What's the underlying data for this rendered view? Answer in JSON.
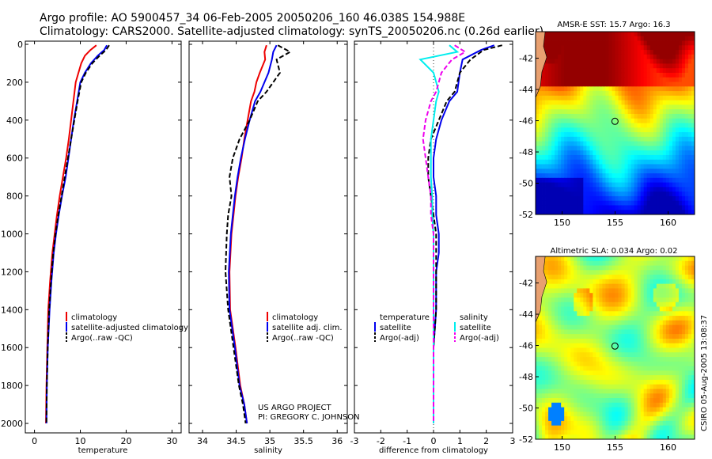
{
  "header": {
    "line1": "Argo profile: AO 5900457_34 06-Feb-2005 20050206_160 46.038S 154.988E",
    "line2": "Climatology: CARS2000. Satellite-adjusted climatology: synTS_20050206.nc (0.26d earlier)"
  },
  "credit": {
    "line1": "US ARGO PROJECT",
    "line2": "PI: GREGORY C. JOHNSON"
  },
  "watermark": "CSIRO 05-Aug-2005 13:08:37",
  "colors": {
    "climatology": "#ee0000",
    "satellite": "#0000ee",
    "argo": "#000000",
    "sal_satellite": "#00eeee",
    "sal_argo": "#ee00ee"
  },
  "chart_data": [
    {
      "type": "line",
      "id": "temperature",
      "xlabel": "temperature",
      "ylim": [
        2050,
        0
      ],
      "xlim": [
        -2,
        32
      ],
      "xticks": [
        "0",
        "10",
        "20",
        "30"
      ],
      "xtick_values": [
        0,
        10,
        20,
        30
      ],
      "yticks": [
        "0",
        "200",
        "400",
        "600",
        "800",
        "1000",
        "1200",
        "1400",
        "1600",
        "1800",
        "2000"
      ],
      "ytick_values": [
        0,
        200,
        400,
        600,
        800,
        1000,
        1200,
        1400,
        1600,
        1800,
        2000
      ],
      "legend": [
        "climatology",
        "satellite-adjusted climatology",
        "Argo(..raw -QC)"
      ],
      "series": [
        {
          "name": "climatology",
          "style": "solid",
          "color": "#ee0000",
          "x": [
            13.5,
            12.2,
            11.0,
            10.2,
            9.6,
            9.0,
            8.5,
            8.0,
            7.5,
            6.9,
            6.2,
            5.5,
            4.9,
            4.4,
            3.9,
            3.4,
            3.0,
            2.8,
            2.6,
            2.5
          ],
          "y": [
            5,
            30,
            60,
            100,
            150,
            200,
            300,
            400,
            500,
            600,
            700,
            800,
            900,
            1000,
            1100,
            1250,
            1400,
            1600,
            1800,
            2000
          ]
        },
        {
          "name": "satellite",
          "style": "solid",
          "color": "#0000ee",
          "x": [
            15.8,
            15.2,
            13.8,
            12.3,
            11.0,
            10.0,
            9.3,
            8.6,
            8.0,
            7.4,
            6.8,
            6.0,
            5.3,
            4.7,
            4.2,
            3.7,
            3.3,
            2.9,
            2.7,
            2.6
          ],
          "y": [
            5,
            30,
            60,
            100,
            150,
            200,
            300,
            400,
            500,
            600,
            700,
            800,
            900,
            1000,
            1100,
            1250,
            1400,
            1600,
            1800,
            2000
          ]
        },
        {
          "name": "argo",
          "style": "dash",
          "color": "#000000",
          "x": [
            16.3,
            15.6,
            14.2,
            12.6,
            11.2,
            10.2,
            9.4,
            8.7,
            8.0,
            7.3,
            6.6,
            5.9,
            5.2,
            4.6,
            4.1,
            3.6,
            3.2,
            2.9,
            2.7,
            2.6
          ],
          "y": [
            5,
            30,
            60,
            100,
            150,
            200,
            300,
            400,
            500,
            600,
            700,
            800,
            900,
            1000,
            1100,
            1250,
            1400,
            1600,
            1800,
            2000
          ]
        }
      ]
    },
    {
      "type": "line",
      "id": "salinity",
      "xlabel": "salinity",
      "ylim": [
        2050,
        0
      ],
      "xlim": [
        33.8,
        36.15
      ],
      "xticks": [
        "34",
        "34.5",
        "35",
        "35.5",
        "36"
      ],
      "xtick_values": [
        34,
        34.5,
        35,
        35.5,
        36
      ],
      "legend": [
        "climatology",
        "satellite adj. clim.",
        "Argo(..raw -QC)"
      ],
      "series": [
        {
          "name": "climatology",
          "style": "solid",
          "color": "#ee0000",
          "x": [
            34.95,
            34.92,
            34.93,
            34.85,
            34.8,
            34.77,
            34.72,
            34.67,
            34.62,
            34.58,
            34.53,
            34.49,
            34.46,
            34.43,
            34.4,
            34.41,
            34.49,
            34.56,
            34.62,
            34.66
          ],
          "y": [
            5,
            40,
            80,
            150,
            200,
            250,
            300,
            400,
            500,
            600,
            700,
            800,
            900,
            1000,
            1200,
            1400,
            1600,
            1800,
            1900,
            2000
          ]
        },
        {
          "name": "satellite",
          "style": "solid",
          "color": "#0000ee",
          "x": [
            35.1,
            35.05,
            35.03,
            34.98,
            34.92,
            34.86,
            34.78,
            34.7,
            34.63,
            34.57,
            34.52,
            34.48,
            34.45,
            34.42,
            34.39,
            34.4,
            34.48,
            34.55,
            34.62,
            34.66
          ],
          "y": [
            5,
            40,
            80,
            150,
            200,
            250,
            300,
            400,
            500,
            600,
            700,
            800,
            900,
            1000,
            1200,
            1400,
            1600,
            1800,
            1900,
            2000
          ]
        },
        {
          "name": "argo",
          "style": "dash",
          "color": "#000000",
          "x": [
            35.12,
            35.3,
            35.1,
            35.15,
            35.05,
            34.95,
            34.82,
            34.7,
            34.55,
            34.45,
            34.4,
            34.43,
            34.38,
            34.36,
            34.34,
            34.38,
            34.46,
            34.54,
            34.6,
            34.64
          ],
          "y": [
            5,
            40,
            80,
            150,
            200,
            250,
            300,
            400,
            500,
            600,
            700,
            800,
            900,
            1000,
            1200,
            1400,
            1600,
            1800,
            1900,
            2000
          ]
        }
      ]
    },
    {
      "type": "line",
      "id": "difference",
      "xlabel": "difference from climatology",
      "ylim": [
        2050,
        0
      ],
      "xlim": [
        -3,
        3
      ],
      "xticks": [
        "-3",
        "-2",
        "-1",
        "0",
        "1",
        "2",
        "3"
      ],
      "xtick_values": [
        -3,
        -2,
        -1,
        0,
        1,
        2,
        3
      ],
      "legend_left_title": "temperature",
      "legend_left": [
        "satellite",
        "Argo(-adj)"
      ],
      "legend_right_title": "salinity",
      "legend_right": [
        "satellite",
        "Argo(-adj)"
      ],
      "series": [
        {
          "name": "temp satellite",
          "style": "solid",
          "color": "#0000ee",
          "x": [
            2.3,
            1.8,
            1.1,
            1.0,
            0.9,
            0.6,
            0.3,
            0.1,
            0.0,
            0.0,
            0.1,
            0.1,
            0.2,
            0.2,
            0.1,
            0.1,
            0.0,
            0.0,
            0.0
          ],
          "y": [
            5,
            30,
            80,
            150,
            250,
            300,
            400,
            500,
            600,
            700,
            800,
            900,
            1000,
            1100,
            1200,
            1400,
            1600,
            1800,
            2000
          ]
        },
        {
          "name": "temp argo",
          "style": "dash",
          "color": "#000000",
          "x": [
            2.6,
            1.9,
            1.4,
            1.0,
            0.8,
            0.5,
            0.2,
            -0.1,
            -0.2,
            -0.2,
            -0.1,
            0.0,
            0.1,
            0.1,
            0.1,
            0.1,
            0.0,
            0.0,
            0.0
          ],
          "y": [
            5,
            30,
            80,
            150,
            250,
            300,
            400,
            500,
            600,
            700,
            800,
            900,
            1000,
            1100,
            1200,
            1400,
            1600,
            1800,
            2000
          ]
        },
        {
          "name": "sal satellite",
          "style": "solid",
          "color": "#00eeee",
          "x": [
            0.6,
            0.9,
            -0.5,
            0.0,
            0.2,
            0.1,
            0.0,
            -0.1,
            -0.1,
            -0.1,
            -0.05,
            -0.05,
            0.0,
            0.0,
            0.0,
            0.0,
            0.0,
            0.0,
            0.0
          ],
          "y": [
            5,
            40,
            80,
            150,
            250,
            300,
            400,
            500,
            600,
            700,
            800,
            900,
            1000,
            1100,
            1200,
            1400,
            1600,
            1800,
            2000
          ]
        },
        {
          "name": "sal argo",
          "style": "dash",
          "color": "#ee00ee",
          "x": [
            0.8,
            1.2,
            0.7,
            0.3,
            0.1,
            -0.1,
            -0.3,
            -0.4,
            -0.3,
            -0.2,
            -0.1,
            -0.1,
            0.0,
            0.0,
            0.0,
            0.0,
            0.0,
            0.0,
            0.0
          ],
          "y": [
            5,
            40,
            80,
            150,
            250,
            300,
            400,
            500,
            600,
            700,
            800,
            900,
            1000,
            1100,
            1200,
            1400,
            1600,
            1800,
            2000
          ]
        }
      ]
    },
    {
      "type": "heatmap",
      "id": "sst_map",
      "title": "AMSR-E SST: 15.7 Argo: 16.3",
      "xlim": [
        147.5,
        162.5
      ],
      "ylim": [
        -52,
        -40.3
      ],
      "xticks": [
        "150",
        "155",
        "160"
      ],
      "xtick_values": [
        150,
        155,
        160
      ],
      "yticks": [
        "-42",
        "-44",
        "-46",
        "-48",
        "-50",
        "-52"
      ],
      "ytick_values": [
        -42,
        -44,
        -46,
        -48,
        -50,
        -52
      ],
      "marker": {
        "lon": 154.988,
        "lat": -46.038
      }
    },
    {
      "type": "heatmap",
      "id": "sla_map",
      "title": "Altimetric SLA: 0.034 Argo: 0.02",
      "xlim": [
        147.5,
        162.5
      ],
      "ylim": [
        -52,
        -40.3
      ],
      "xticks": [
        "150",
        "155",
        "160"
      ],
      "xtick_values": [
        150,
        155,
        160
      ],
      "yticks": [
        "-42",
        "-44",
        "-46",
        "-48",
        "-50",
        "-52"
      ],
      "ytick_values": [
        -42,
        -44,
        -46,
        -48,
        -50,
        -52
      ],
      "marker": {
        "lon": 154.988,
        "lat": -46.038
      }
    }
  ]
}
